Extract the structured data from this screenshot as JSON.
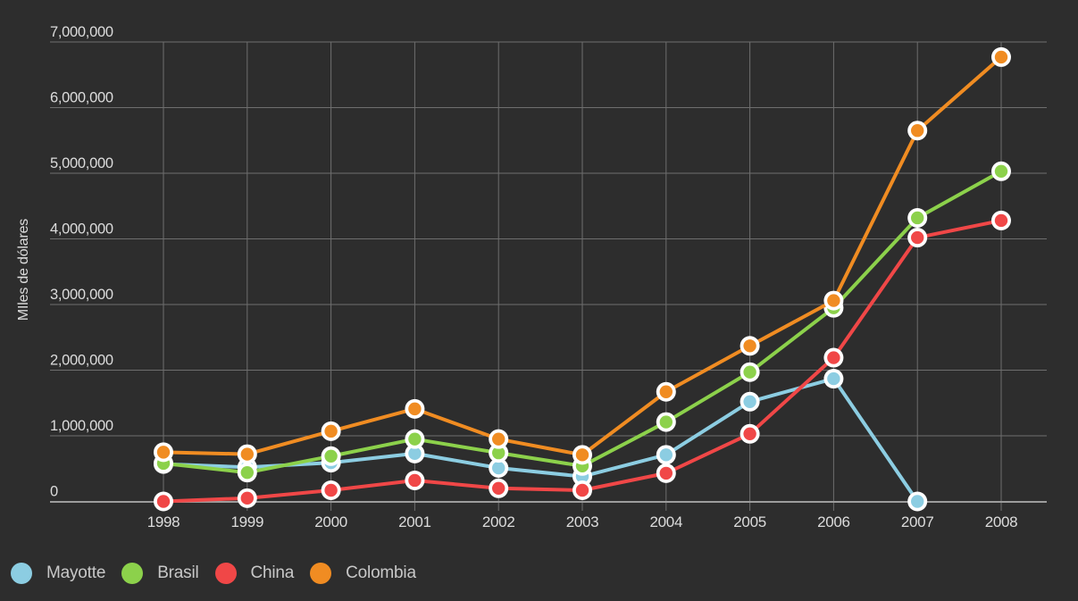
{
  "chart": {
    "background_color": "#2d2d2d",
    "grid_color": "#6e6e6e",
    "axis_line_color": "#9c9c9c",
    "tick_label_color": "#dcdcdc",
    "legend_text_color": "#c8c8c8",
    "point_ring_color": "#ffffff"
  },
  "chart_data": {
    "type": "line",
    "title": "",
    "xlabel": "",
    "ylabel": "MIles de dólares",
    "categories": [
      "1998",
      "1999",
      "2000",
      "2001",
      "2002",
      "2003",
      "2004",
      "2005",
      "2006",
      "2007",
      "2008"
    ],
    "ylim": [
      0,
      7000000
    ],
    "y_tick_interval": 1000000,
    "y_ticks": [
      0,
      1000000,
      2000000,
      3000000,
      4000000,
      5000000,
      6000000,
      7000000
    ],
    "grid": true,
    "legend_position": "bottom-left",
    "series": [
      {
        "name": "Mayotte",
        "color": "#8ccde2",
        "values": [
          570000,
          520000,
          590000,
          730000,
          510000,
          380000,
          710000,
          1520000,
          1870000,
          0,
          null
        ]
      },
      {
        "name": "Brasil",
        "color": "#8cd14b",
        "values": [
          580000,
          440000,
          690000,
          950000,
          740000,
          540000,
          1210000,
          1970000,
          2950000,
          4320000,
          5030000
        ]
      },
      {
        "name": "China",
        "color": "#f04747",
        "values": [
          0,
          50000,
          170000,
          320000,
          200000,
          170000,
          430000,
          1030000,
          2190000,
          4020000,
          4280000
        ]
      },
      {
        "name": "Colombia",
        "color": "#f08c22",
        "values": [
          750000,
          720000,
          1070000,
          1410000,
          950000,
          710000,
          1670000,
          2370000,
          3060000,
          5650000,
          6770000
        ]
      }
    ]
  }
}
